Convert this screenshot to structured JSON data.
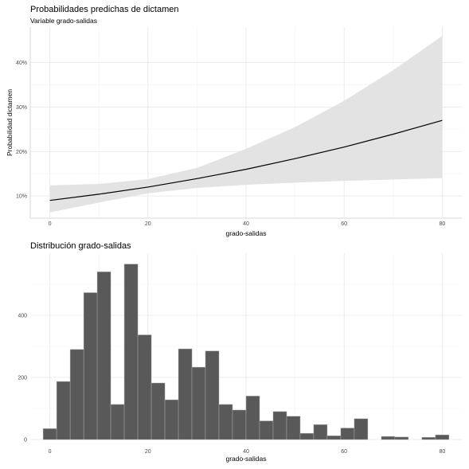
{
  "chart_data": [
    {
      "type": "line",
      "title": "Probabilidades predichas de dictamen",
      "subtitle": "Variable grado-salidas",
      "xlabel": "grado-salidas",
      "ylabel": "Probabilidad dictamen",
      "xlim": [
        -4,
        84
      ],
      "ylim": [
        5,
        48
      ],
      "x_ticks": [
        0,
        20,
        40,
        60,
        80
      ],
      "x_tick_labels": [
        "0",
        "20",
        "40",
        "60",
        "80"
      ],
      "y_ticks": [
        10,
        20,
        30,
        40
      ],
      "y_tick_labels": [
        "10%",
        "20%",
        "30%",
        "40%"
      ],
      "grid": true,
      "series": [
        {
          "x": [
            0,
            10,
            20,
            30,
            40,
            50,
            60,
            70,
            80
          ],
          "y": [
            9.0,
            10.4,
            12.0,
            13.9,
            16.0,
            18.4,
            21.0,
            23.9,
            27.0
          ],
          "lower": [
            6.3,
            8.5,
            10.6,
            11.8,
            12.5,
            13.0,
            13.4,
            13.7,
            14.0
          ],
          "upper": [
            12.4,
            12.7,
            13.8,
            16.3,
            20.6,
            25.5,
            31.4,
            38.3,
            46.0
          ]
        }
      ],
      "colors": {
        "line": "#000000",
        "ribbon": "#e0e0e0"
      }
    },
    {
      "type": "bar",
      "title": "Distribución grado-salidas",
      "xlabel": "grado-salidas",
      "ylabel": "",
      "xlim": [
        -4,
        84
      ],
      "ylim": [
        0,
        600
      ],
      "x_ticks": [
        0,
        20,
        40,
        60,
        80
      ],
      "x_tick_labels": [
        "0",
        "20",
        "40",
        "60",
        "80"
      ],
      "y_ticks": [
        0,
        200,
        400
      ],
      "y_tick_labels": [
        "0",
        "200",
        "400"
      ],
      "grid": true,
      "bin_width": 2.7586,
      "bin_centers": [
        0,
        2.76,
        5.52,
        8.28,
        11.03,
        13.79,
        16.55,
        19.31,
        22.07,
        24.83,
        27.59,
        30.34,
        33.1,
        35.86,
        38.62,
        41.38,
        44.14,
        46.9,
        49.66,
        52.41,
        55.17,
        57.93,
        60.69,
        63.45,
        66.21,
        68.97,
        71.72,
        74.48,
        77.24,
        80
      ],
      "values": [
        35,
        187,
        290,
        473,
        540,
        113,
        565,
        337,
        182,
        128,
        292,
        233,
        285,
        113,
        95,
        140,
        60,
        90,
        75,
        20,
        48,
        12,
        37,
        67,
        0,
        10,
        8,
        0,
        7,
        15
      ],
      "colors": {
        "bar": "#595959",
        "bar_edge": "#a6a6a6"
      }
    }
  ]
}
